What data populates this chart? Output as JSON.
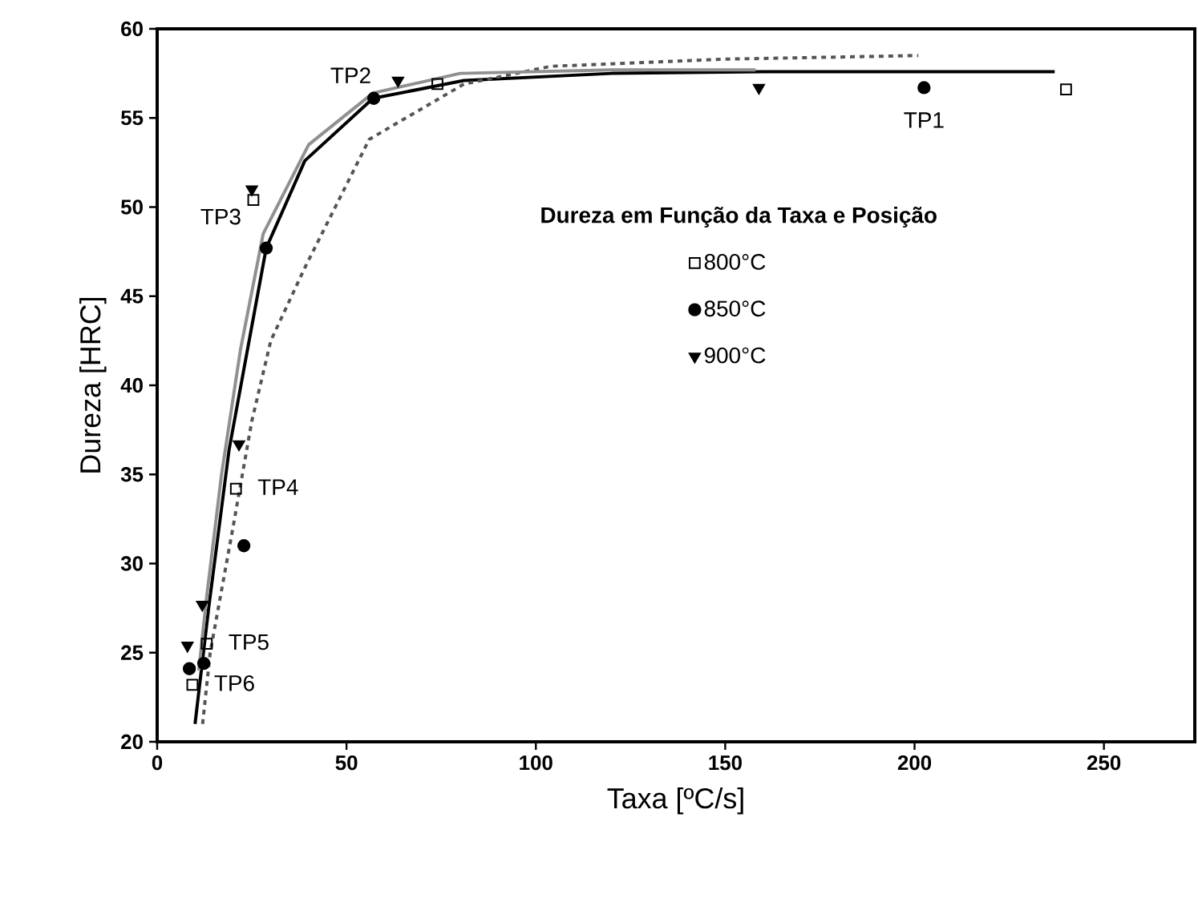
{
  "chart_data": {
    "type": "scatter",
    "xlabel": "Taxa [ºC/s]",
    "ylabel": "Dureza [HRC]",
    "legend_title": "Dureza em Função da Taxa e Posição",
    "legend": "right",
    "grid": false,
    "xlim": [
      0,
      274
    ],
    "ylim": [
      20,
      60
    ],
    "xticks": [
      0,
      50,
      100,
      150,
      200,
      250
    ],
    "yticks": [
      20,
      25,
      30,
      35,
      40,
      45,
      50,
      55,
      60
    ],
    "series": [
      {
        "name": "800°C",
        "marker": "square",
        "color": "#000000",
        "x": [
          240,
          74,
          25.4,
          20.8,
          13.1,
          9.3
        ],
        "values": [
          56.6,
          56.9,
          50.4,
          34.2,
          25.5,
          23.2
        ]
      },
      {
        "name": "850°C",
        "marker": "circle",
        "color": "#000000",
        "x": [
          202.5,
          57.2,
          28.8,
          22.9,
          12.3,
          8.5
        ],
        "values": [
          56.7,
          56.1,
          47.7,
          31.0,
          24.4,
          24.1
        ]
      },
      {
        "name": "900°C",
        "marker": "triangle",
        "color": "#000000",
        "x": [
          158.9,
          63.6,
          25,
          21.6,
          11.9,
          8
        ],
        "values": [
          56.7,
          57.1,
          51.0,
          36.7,
          27.7,
          25.4
        ]
      },
      {
        "type": "line",
        "line_style": "solid",
        "color": "#000000",
        "x": [
          10,
          13.6,
          19,
          22.9,
          28.8,
          39,
          57,
          81,
          120,
          160,
          200,
          237
        ],
        "values": [
          21,
          27.5,
          36.4,
          40.9,
          47.7,
          52.6,
          56.1,
          57.1,
          57.5,
          57.6,
          57.6,
          57.6
        ]
      },
      {
        "type": "line",
        "line_style": "dashed",
        "color": "#555555",
        "x": [
          12,
          14,
          20,
          25,
          30,
          39,
          56,
          81,
          104,
          150,
          201
        ],
        "values": [
          21,
          25,
          32,
          38,
          42.5,
          46.6,
          53.8,
          56.9,
          57.9,
          58.3,
          58.5
        ]
      },
      {
        "type": "line",
        "line_style": "solid",
        "color": "#909090",
        "x": [
          11,
          13,
          17,
          22,
          28,
          40,
          57,
          80,
          120,
          158
        ],
        "values": [
          24,
          28,
          35,
          42,
          48.5,
          53.5,
          56.4,
          57.5,
          57.7,
          57.7
        ]
      }
    ],
    "annotations": [
      {
        "text": "TP1",
        "x": 202.5,
        "y": 56.7
      },
      {
        "text": "TP2",
        "x": 57.2,
        "y": 56.1
      },
      {
        "text": "TP3",
        "x": 25.4,
        "y": 50.4
      },
      {
        "text": "TP4",
        "x": 20.8,
        "y": 34.2
      },
      {
        "text": "TP5",
        "x": 13.1,
        "y": 25.5
      },
      {
        "text": "TP6",
        "x": 9.3,
        "y": 23.2
      }
    ]
  }
}
